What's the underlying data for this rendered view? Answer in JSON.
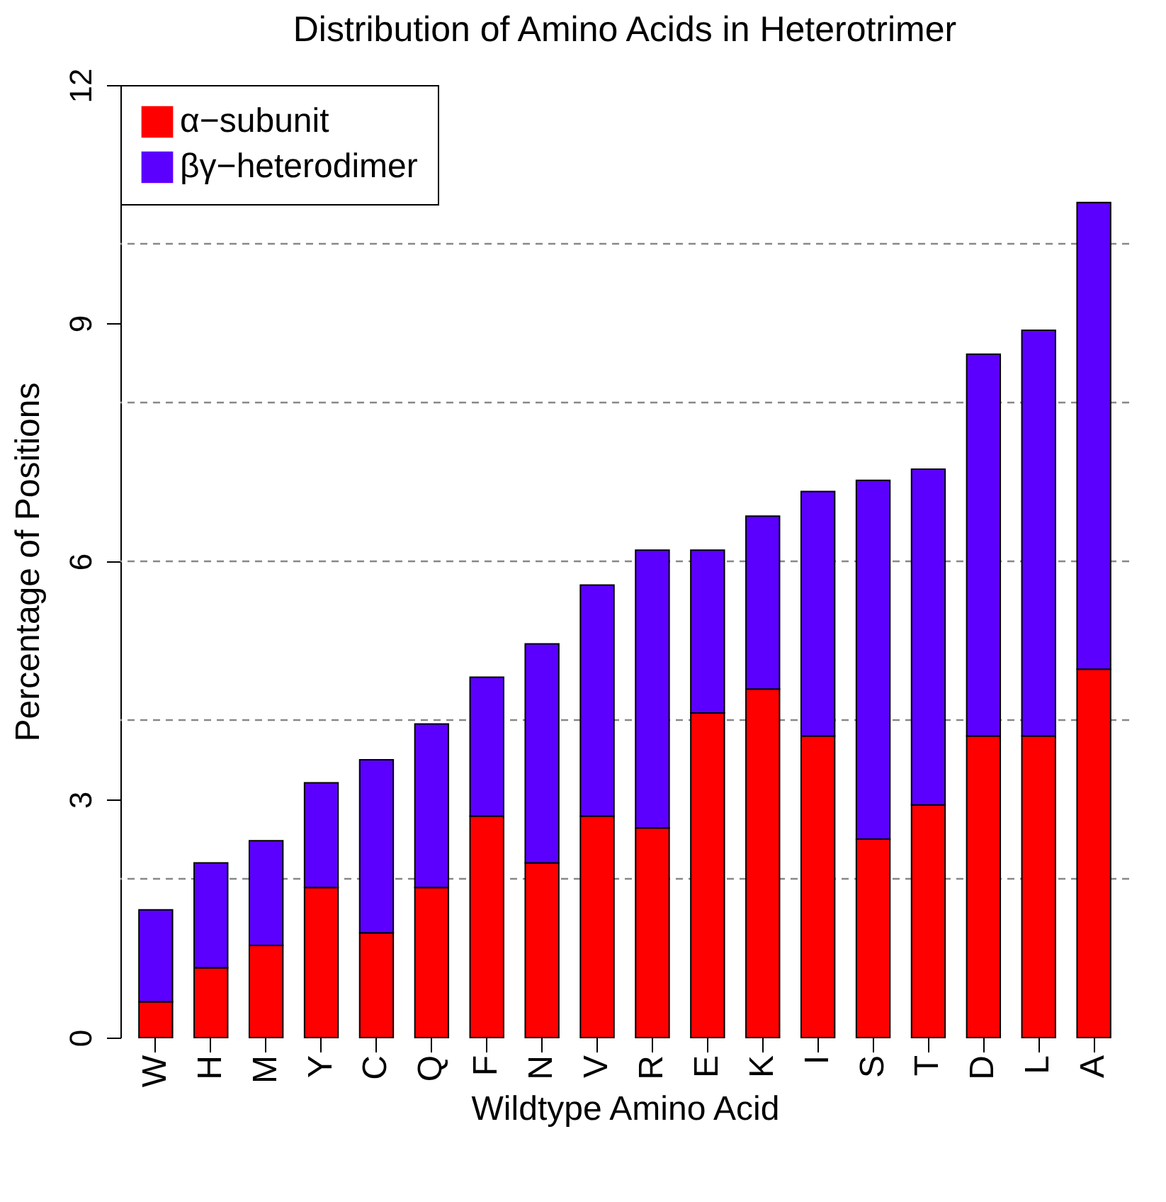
{
  "chart_data": {
    "type": "bar",
    "title": "Distribution of Amino Acids in Heterotrimer",
    "xlabel": "Wildtype Amino Acid",
    "ylabel": "Percentage of Positions",
    "categories": [
      "W",
      "H",
      "M",
      "Y",
      "C",
      "Q",
      "F",
      "N",
      "V",
      "R",
      "E",
      "K",
      "I",
      "S",
      "T",
      "D",
      "L",
      "A"
    ],
    "stacked": true,
    "series": [
      {
        "name": "α−subunit",
        "color": "#ff0000",
        "values": [
          0.45,
          0.88,
          1.16,
          1.89,
          1.32,
          1.89,
          2.79,
          2.2,
          2.79,
          2.64,
          4.09,
          4.39,
          3.8,
          2.5,
          2.93,
          3.8,
          3.8,
          4.64
        ]
      },
      {
        "name": "βγ−heterodimer",
        "color": "#5b00ff",
        "values": [
          1.16,
          1.32,
          1.32,
          1.32,
          2.18,
          2.06,
          1.75,
          2.76,
          2.91,
          3.5,
          2.05,
          2.18,
          3.08,
          4.52,
          4.23,
          4.81,
          5.11,
          5.88
        ]
      }
    ],
    "ylim": [
      0,
      12
    ],
    "yticks": [
      0,
      3,
      6,
      9,
      12
    ],
    "grid": false,
    "legend": "top left",
    "ref_lines": [
      {
        "axis": "y",
        "value": 2,
        "color": "#888888",
        "line_style": "dashed"
      },
      {
        "axis": "y",
        "value": 4,
        "color": "#888888",
        "line_style": "dashed"
      },
      {
        "axis": "y",
        "value": 6,
        "color": "#888888",
        "line_style": "dashed"
      },
      {
        "axis": "y",
        "value": 8,
        "color": "#888888",
        "line_style": "dashed"
      },
      {
        "axis": "y",
        "value": 10,
        "color": "#888888",
        "line_style": "dashed"
      }
    ]
  }
}
